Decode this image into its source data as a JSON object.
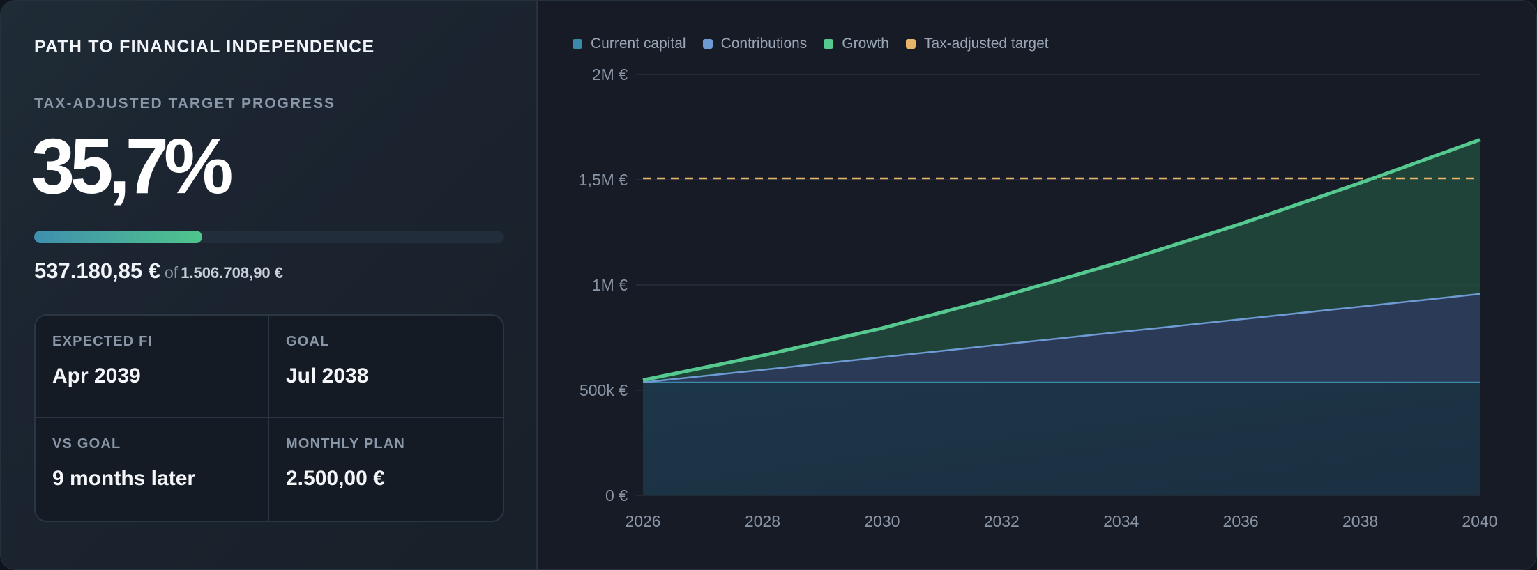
{
  "left": {
    "title": "PATH TO FINANCIAL INDEPENDENCE",
    "kpi_label": "TAX-ADJUSTED TARGET PROGRESS",
    "kpi_value": "35,7%",
    "progress_fraction": 0.357,
    "current_amount": "537.180,85 €",
    "of_label": "of",
    "target_amount": "1.506.708,90 €",
    "stats": [
      {
        "label": "EXPECTED FI",
        "value": "Apr 2039"
      },
      {
        "label": "GOAL",
        "value": "Jul 2038"
      },
      {
        "label": "VS GOAL",
        "value": "9 months later"
      },
      {
        "label": "MONTHLY PLAN",
        "value": "2.500,00 €"
      }
    ]
  },
  "colors": {
    "current_capital": "#3b8aa9",
    "contributions": "#6f9bd4",
    "growth": "#55c98f",
    "target": "#e8b36a",
    "accent_gradient_start": "#3f8fae",
    "accent_gradient_end": "#4fc58b"
  },
  "chart_data": {
    "type": "area",
    "legend_position": "top-left",
    "legend": [
      "Current capital",
      "Contributions",
      "Growth",
      "Tax-adjusted target"
    ],
    "x": [
      2026,
      2028,
      2030,
      2032,
      2034,
      2036,
      2038,
      2040
    ],
    "xlim": [
      2026,
      2040
    ],
    "ylim": [
      0,
      2000000
    ],
    "y_ticks": [
      {
        "value": 0,
        "label": "0 €"
      },
      {
        "value": 500000,
        "label": "500k €"
      },
      {
        "value": 1000000,
        "label": "1M €"
      },
      {
        "value": 1500000,
        "label": "1,5M €"
      },
      {
        "value": 2000000,
        "label": "2M €"
      }
    ],
    "grid": true,
    "series": [
      {
        "name": "Current capital",
        "values": [
          537181,
          537181,
          537181,
          537181,
          537181,
          537181,
          537181,
          537181
        ]
      },
      {
        "name": "Contributions",
        "values": [
          537181,
          597181,
          657181,
          717181,
          777181,
          837181,
          897181,
          957181
        ]
      },
      {
        "name": "Growth",
        "values": [
          548000,
          665000,
          795000,
          945000,
          1110000,
          1290000,
          1485000,
          1690000
        ]
      }
    ],
    "target_value": 1506708.9
  }
}
